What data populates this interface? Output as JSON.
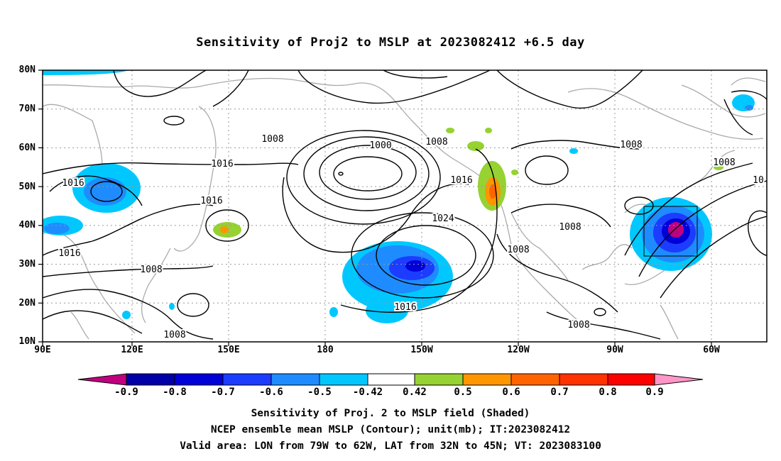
{
  "title": "Sensitivity of Proj2 to MSLP at 2023082412 +6.5 day",
  "lat_labels": [
    "80N",
    "70N",
    "60N",
    "50N",
    "40N",
    "30N",
    "20N",
    "10N"
  ],
  "lon_labels": [
    "90E",
    "120E",
    "150E",
    "180",
    "150W",
    "120W",
    "90W",
    "60W"
  ],
  "contour_labels": [
    "1016",
    "1008",
    "1016",
    "1016",
    "1016",
    "1008",
    "1000",
    "1008",
    "1016",
    "1024",
    "1008",
    "1008",
    "1016",
    "1008",
    "1008",
    "1008",
    "1008",
    "10"
  ],
  "colorbar": {
    "labels": [
      "-0.9",
      "-0.8",
      "-0.7",
      "-0.6",
      "-0.5",
      "-0.42",
      "0.42",
      "0.5",
      "0.6",
      "0.7",
      "0.8",
      "0.9"
    ],
    "colors": [
      "#c0007f",
      "#0000a8",
      "#0000d8",
      "#1c3cff",
      "#1e8cff",
      "#00c8ff",
      "#ffffff",
      "#96d232",
      "#ff9600",
      "#ff6400",
      "#ff3200",
      "#ff0000",
      "#ff96c8"
    ]
  },
  "captions": [
    "Sensitivity of Proj. 2 to MSLP field (Shaded)",
    "NCEP ensemble mean MSLP (Contour); unit(mb); IT:2023082412",
    "Valid area: LON from 79W to 62W, LAT from 32N to 45N; VT: 2023083100"
  ]
}
